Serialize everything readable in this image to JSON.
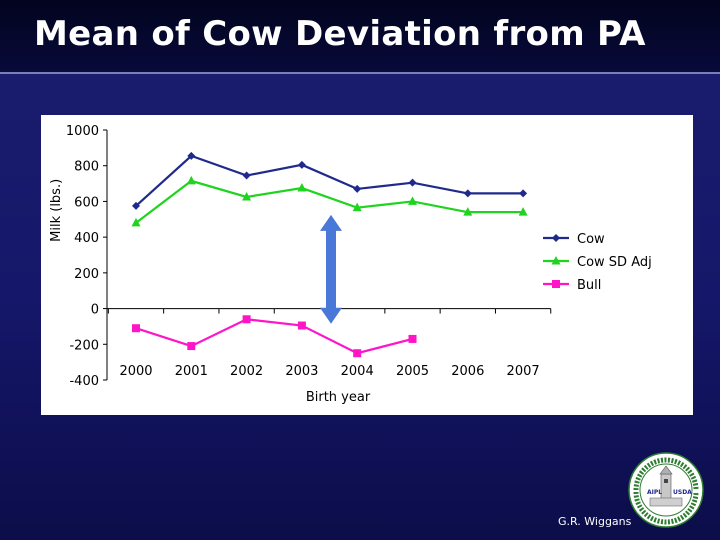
{
  "slide": {
    "title": "Mean of Cow Deviation from PA",
    "author": "G.R. Wiggans",
    "logo": {
      "name": "research-institute-seal-icon",
      "left_text": "AIPL",
      "right_text": "USDA"
    }
  },
  "colors": {
    "background": "#15176a",
    "cow": "#1f2a8c",
    "cow_sd_adj": "#1fd41f",
    "bull": "#ff14c8",
    "arrow": "#4a78d8"
  },
  "chart_data": {
    "type": "line",
    "title": "",
    "xlabel": "Birth year",
    "ylabel": "Milk (lbs.)",
    "ylim": [
      -400,
      1000
    ],
    "yticks": [
      1000,
      800,
      600,
      400,
      200,
      0,
      -200,
      -400
    ],
    "categories": [
      "2000",
      "2001",
      "2002",
      "2003",
      "2004",
      "2005",
      "2006",
      "2007"
    ],
    "grid": false,
    "legend_position": "right",
    "series": [
      {
        "name": "Cow",
        "marker": "diamond",
        "color": "#1f2a8c",
        "values": [
          575,
          855,
          745,
          805,
          670,
          705,
          645,
          645
        ]
      },
      {
        "name": "Cow SD Adj",
        "marker": "triangle",
        "color": "#1fd41f",
        "values": [
          480,
          715,
          625,
          675,
          565,
          600,
          540,
          540
        ]
      },
      {
        "name": "Bull",
        "marker": "square",
        "color": "#ff14c8",
        "values": [
          -110,
          -210,
          -60,
          -95,
          -250,
          -170,
          null,
          null
        ]
      }
    ],
    "annotation": {
      "type": "double-arrow",
      "from_value": 525,
      "to_value": -85,
      "between": [
        "2003",
        "2004"
      ]
    }
  }
}
